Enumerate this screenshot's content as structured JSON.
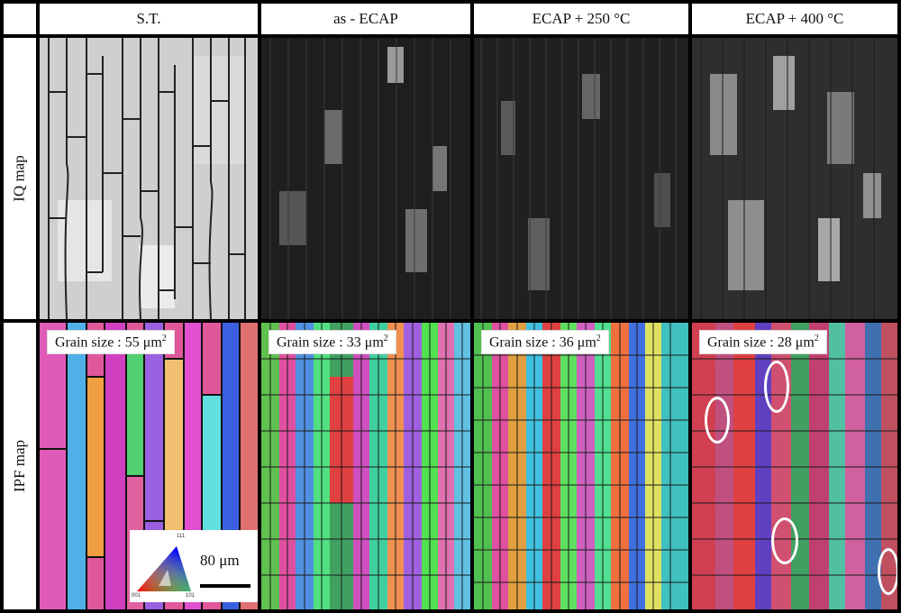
{
  "columns": [
    "S.T.",
    "as - ECAP",
    "ECAP + 250 °C",
    "ECAP + 400 °C"
  ],
  "rows": [
    "IQ map",
    "IPF map"
  ],
  "grain_sizes": [
    {
      "label": "Grain size : 55 μm",
      "exp": "2"
    },
    {
      "label": "Grain size : 33 μm",
      "exp": "2"
    },
    {
      "label": "Grain size : 36 μm",
      "exp": "2"
    },
    {
      "label": "Grain size : 28 μm",
      "exp": "2"
    }
  ],
  "scale_bar": "80 μm",
  "legend": {
    "top": "111",
    "bottom_left": "001",
    "bottom_right": "101"
  },
  "colors": {
    "background": "#000000",
    "marker": "#ffffff"
  }
}
